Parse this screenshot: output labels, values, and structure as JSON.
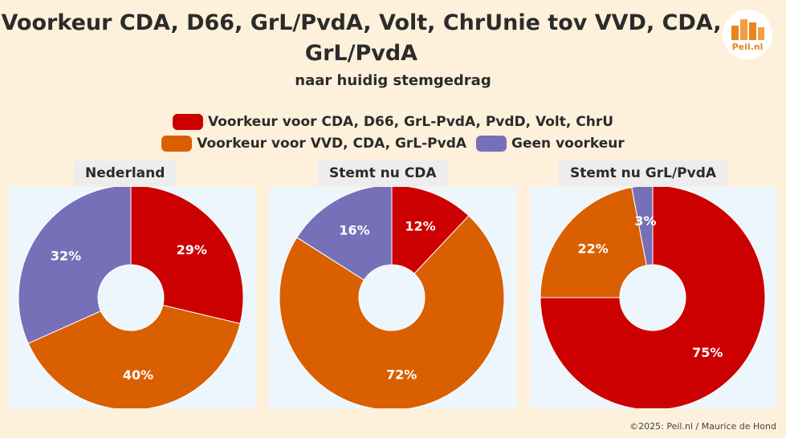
{
  "header": {
    "title_line1": "Voorkeur CDA, D66, GrL/PvdA, Volt, ChrUnie tov VVD, CDA,",
    "title_line2": "GrL/PvdA",
    "subtitle": "naar huidig stemgedrag",
    "logo_text": "Peil.nl"
  },
  "legend": {
    "items": [
      {
        "label": "Voorkeur voor CDA, D66, GrL-PvdA, PvdD, Volt, ChrU",
        "color": "#cc0000"
      },
      {
        "label": "Voorkeur voor VVD, CDA, GrL-PvdA",
        "color": "#d95f00"
      },
      {
        "label": "Geen voorkeur",
        "color": "#7570b8"
      }
    ]
  },
  "chart_data": [
    {
      "type": "pie",
      "title": "Nederland",
      "categories": [
        "Voorkeur voor CDA, D66, GrL-PvdA, PvdD, Volt, ChrU",
        "Voorkeur voor VVD, CDA, GrL-PvdA",
        "Geen voorkeur"
      ],
      "values": [
        29,
        40,
        32
      ],
      "labels": [
        "29%",
        "40%",
        "32%"
      ]
    },
    {
      "type": "pie",
      "title": "Stemt nu CDA",
      "categories": [
        "Voorkeur voor CDA, D66, GrL-PvdA, PvdD, Volt, ChrU",
        "Voorkeur voor VVD, CDA, GrL-PvdA",
        "Geen voorkeur"
      ],
      "values": [
        12,
        72,
        16
      ],
      "labels": [
        "12%",
        "72%",
        "16%"
      ]
    },
    {
      "type": "pie",
      "title": "Stemt nu GrL/PvdA",
      "categories": [
        "Voorkeur voor CDA, D66, GrL-PvdA, PvdD, Volt, ChrU",
        "Voorkeur voor VVD, CDA, GrL-PvdA",
        "Geen voorkeur"
      ],
      "values": [
        75,
        22,
        3
      ],
      "labels": [
        "75%",
        "22%",
        "3%"
      ]
    }
  ],
  "footer": {
    "credit": "©2025: Peil.nl / Maurice de Hond"
  }
}
